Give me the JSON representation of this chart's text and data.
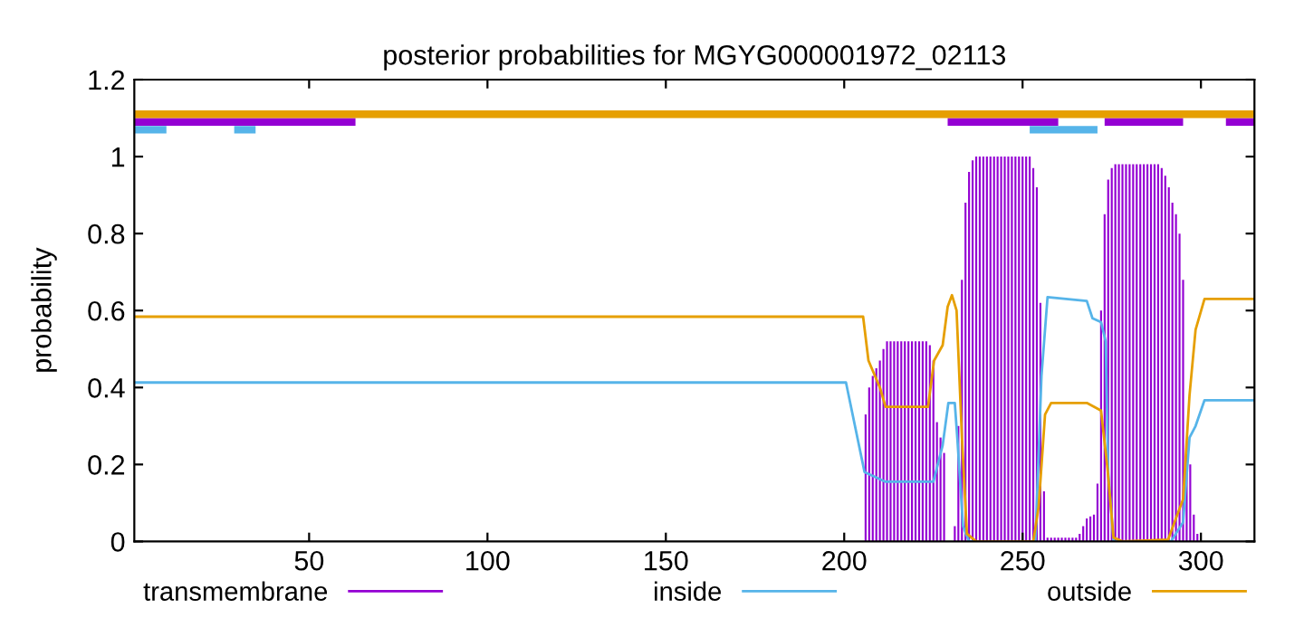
{
  "chart_data": {
    "type": "line",
    "title": "posterior probabilities for MGYG000001972_02113",
    "ylabel": "probability",
    "xlim": [
      1,
      315
    ],
    "ylim": [
      0,
      1.2
    ],
    "xticks": [
      50,
      100,
      150,
      200,
      250,
      300
    ],
    "yticks": [
      0,
      0.2,
      0.4,
      0.6,
      0.8,
      1,
      1.2
    ],
    "legend": "bottom",
    "grid": false,
    "series": [
      {
        "name": "transmembrane",
        "type": "bar",
        "color": "#9400d3",
        "x": [
          206,
          207,
          208,
          209,
          210,
          211,
          212,
          213,
          214,
          215,
          216,
          217,
          218,
          219,
          220,
          221,
          222,
          223,
          224,
          225,
          226,
          227,
          228,
          231,
          232,
          233,
          234,
          235,
          236,
          237,
          238,
          239,
          240,
          241,
          242,
          243,
          244,
          245,
          246,
          247,
          248,
          249,
          250,
          251,
          252,
          253,
          254,
          255,
          256,
          257,
          258,
          259,
          260,
          261,
          262,
          263,
          264,
          265,
          266,
          267,
          268,
          269,
          270,
          271,
          272,
          273,
          274,
          275,
          276,
          277,
          278,
          279,
          280,
          281,
          282,
          283,
          284,
          285,
          286,
          287,
          288,
          289,
          290,
          291,
          292,
          293,
          294,
          295,
          296,
          297,
          298,
          299
        ],
        "values": [
          0.33,
          0.4,
          0.43,
          0.45,
          0.47,
          0.5,
          0.52,
          0.52,
          0.52,
          0.52,
          0.52,
          0.52,
          0.52,
          0.52,
          0.52,
          0.52,
          0.52,
          0.52,
          0.51,
          0.47,
          0.31,
          0.27,
          0.23,
          0.04,
          0.3,
          0.68,
          0.88,
          0.96,
          0.99,
          1.0,
          1.0,
          1.0,
          1.0,
          1.0,
          1.0,
          1.0,
          1.0,
          1.0,
          1.0,
          1.0,
          1.0,
          1.0,
          1.0,
          1.0,
          1.0,
          0.97,
          0.92,
          0.62,
          0.13,
          0.01,
          0.01,
          0.01,
          0.01,
          0.01,
          0.01,
          0.01,
          0.01,
          0.01,
          0.02,
          0.04,
          0.06,
          0.065,
          0.07,
          0.15,
          0.6,
          0.85,
          0.94,
          0.97,
          0.98,
          0.98,
          0.98,
          0.98,
          0.98,
          0.98,
          0.98,
          0.98,
          0.98,
          0.98,
          0.98,
          0.98,
          0.98,
          0.97,
          0.95,
          0.92,
          0.88,
          0.85,
          0.8,
          0.68,
          0.26,
          0.2,
          0.07,
          0.02
        ]
      },
      {
        "name": "inside",
        "color": "#56b4e9",
        "x": [
          1,
          200.5,
          205.7,
          211.6,
          225,
          227.6,
          229.2,
          231,
          231.7,
          233.3,
          235,
          253.6,
          255.3,
          257,
          268,
          269.6,
          272,
          273.3,
          274,
          275.5,
          291.6,
          295,
          296.8,
          298.5,
          301,
          315
        ],
        "values": [
          0.413,
          0.413,
          0.18,
          0.155,
          0.155,
          0.25,
          0.36,
          0.36,
          0.27,
          0.04,
          0.0,
          0.0,
          0.43,
          0.635,
          0.625,
          0.58,
          0.57,
          0.52,
          0.18,
          0.0,
          0.0,
          0.05,
          0.27,
          0.3,
          0.367,
          0.367
        ]
      },
      {
        "name": "outside",
        "color": "#e69f00",
        "x": [
          1,
          205.3,
          206.8,
          210,
          211.6,
          223.5,
          225.2,
          227.6,
          229,
          230.2,
          231.5,
          233,
          234.4,
          237,
          253,
          254.5,
          256.3,
          258,
          268,
          272,
          273.8,
          275.5,
          278,
          290.8,
          295,
          296.8,
          298.5,
          301,
          315
        ],
        "values": [
          0.584,
          0.584,
          0.47,
          0.4,
          0.35,
          0.35,
          0.47,
          0.51,
          0.61,
          0.64,
          0.6,
          0.27,
          0.02,
          0.0,
          0.0,
          0.09,
          0.33,
          0.36,
          0.36,
          0.34,
          0.19,
          0.01,
          0.0,
          0.005,
          0.11,
          0.38,
          0.55,
          0.63,
          0.63
        ]
      },
      {
        "color": "#9400d3",
        "x": [
          1,
          63,
          146,
          229,
          260,
          266,
          273,
          295,
          301,
          307,
          315
        ],
        "values": [
          1.09,
          1.09,
          null,
          1.09,
          1.09,
          null,
          1.09,
          1.09,
          null,
          1.09,
          1.09
        ]
      },
      {
        "color": "#56b4e9",
        "x": [
          1,
          10,
          20,
          29,
          35,
          140,
          252,
          271
        ],
        "values": [
          1.07,
          1.07,
          null,
          1.07,
          1.07,
          null,
          1.07,
          1.07
        ]
      },
      {
        "color": "#e69f00",
        "x": [
          1,
          315
        ],
        "values": [
          1.11,
          1.11
        ]
      }
    ]
  }
}
